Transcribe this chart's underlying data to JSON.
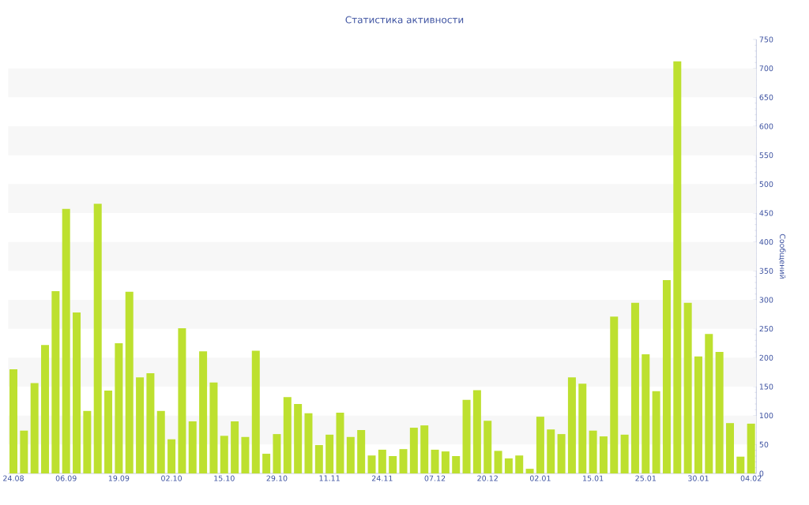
{
  "chart_data": {
    "type": "bar",
    "title": "Статистика активности",
    "ylabel": "Сообщений",
    "categories": [
      "24.08",
      null,
      null,
      null,
      null,
      "06.09",
      null,
      null,
      null,
      null,
      "19.09",
      null,
      null,
      null,
      null,
      "02.10",
      null,
      null,
      null,
      null,
      "15.10",
      null,
      null,
      null,
      null,
      "29.10",
      null,
      null,
      null,
      null,
      "11.11",
      null,
      null,
      null,
      null,
      "24.11",
      null,
      null,
      null,
      null,
      "07.12",
      null,
      null,
      null,
      null,
      "20.12",
      null,
      null,
      null,
      null,
      "02.01",
      null,
      null,
      null,
      null,
      "15.01",
      null,
      null,
      null,
      null,
      "25.01",
      null,
      null,
      null,
      null,
      "30.01",
      null,
      null,
      null,
      null,
      "04.02"
    ],
    "values": [
      180,
      74,
      156,
      222,
      315,
      457,
      278,
      108,
      466,
      143,
      225,
      314,
      166,
      173,
      108,
      59,
      251,
      90,
      211,
      157,
      65,
      90,
      63,
      212,
      34,
      68,
      132,
      120,
      104,
      49,
      67,
      105,
      63,
      75,
      31,
      41,
      30,
      42,
      79,
      83,
      41,
      38,
      30,
      127,
      144,
      91,
      39,
      26,
      31,
      8,
      98,
      76,
      68,
      166,
      155,
      74,
      64,
      271,
      67,
      295,
      206,
      142,
      334,
      712,
      295,
      202,
      241,
      210,
      87,
      29,
      86
    ],
    "color": "#bde02f",
    "ylim": [
      0,
      750
    ],
    "yticks": [
      0,
      50,
      100,
      150,
      200,
      250,
      300,
      350,
      400,
      450,
      500,
      550,
      600,
      650,
      700,
      750
    ],
    "bands": [
      {
        "axis": "y",
        "from": 50,
        "to": 100,
        "color": "#f7f7f7"
      },
      {
        "axis": "y",
        "from": 150,
        "to": 200,
        "color": "#f7f7f7"
      },
      {
        "axis": "y",
        "from": 250,
        "to": 300,
        "color": "#f7f7f7"
      },
      {
        "axis": "y",
        "from": 350,
        "to": 400,
        "color": "#f7f7f7"
      },
      {
        "axis": "y",
        "from": 450,
        "to": 500,
        "color": "#f7f7f7"
      },
      {
        "axis": "y",
        "from": 550,
        "to": 600,
        "color": "#f7f7f7"
      },
      {
        "axis": "y",
        "from": 650,
        "to": 700,
        "color": "#f7f7f7"
      }
    ]
  }
}
